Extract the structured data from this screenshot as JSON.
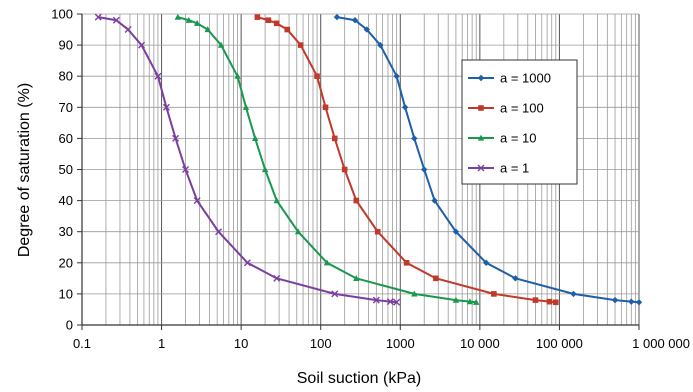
{
  "chart_data": {
    "type": "line",
    "title": "",
    "xlabel": "Soil suction (kPa)",
    "ylabel": "Degree of saturation (%)",
    "x_scale": "log",
    "xlim": [
      0.1,
      1000000
    ],
    "ylim": [
      0,
      100
    ],
    "grid": true,
    "legend_position": "right",
    "x_tick_labels": [
      "0.1",
      "1",
      "10",
      "100",
      "1000",
      "10 000",
      "100 000",
      "1 000 000"
    ],
    "y_tick_labels": [
      "0",
      "10",
      "20",
      "30",
      "40",
      "50",
      "60",
      "70",
      "80",
      "90",
      "100"
    ],
    "series": [
      {
        "name": "a = 1000",
        "color": "#1f5fa8",
        "marker": "diamond",
        "points": [
          [
            160,
            99
          ],
          [
            270,
            98
          ],
          [
            380,
            95
          ],
          [
            560,
            90
          ],
          [
            900,
            80
          ],
          [
            1150,
            70
          ],
          [
            1500,
            60
          ],
          [
            2000,
            50
          ],
          [
            2700,
            40
          ],
          [
            5000,
            30
          ],
          [
            12000,
            20
          ],
          [
            28000,
            15
          ],
          [
            150000,
            10
          ],
          [
            500000,
            8
          ],
          [
            800000,
            7.5
          ],
          [
            1000000,
            7.3
          ]
        ]
      },
      {
        "name": "a = 100",
        "color": "#c0392b",
        "marker": "square",
        "points": [
          [
            16,
            99
          ],
          [
            22,
            98
          ],
          [
            28,
            97
          ],
          [
            38,
            95
          ],
          [
            56,
            90
          ],
          [
            90,
            80
          ],
          [
            115,
            70
          ],
          [
            150,
            60
          ],
          [
            200,
            50
          ],
          [
            280,
            40
          ],
          [
            520,
            30
          ],
          [
            1200,
            20
          ],
          [
            2800,
            15
          ],
          [
            15000,
            10
          ],
          [
            50000,
            8
          ],
          [
            75000,
            7.5
          ],
          [
            90000,
            7.3
          ]
        ]
      },
      {
        "name": "a = 10",
        "color": "#1a9850",
        "marker": "triangle",
        "points": [
          [
            1.6,
            99
          ],
          [
            2.2,
            98
          ],
          [
            2.8,
            97
          ],
          [
            3.8,
            95
          ],
          [
            5.6,
            90
          ],
          [
            9,
            80
          ],
          [
            11.5,
            70
          ],
          [
            15,
            60
          ],
          [
            20,
            50
          ],
          [
            28,
            40
          ],
          [
            52,
            30
          ],
          [
            120,
            20
          ],
          [
            280,
            15
          ],
          [
            1500,
            10
          ],
          [
            5000,
            8
          ],
          [
            7500,
            7.5
          ],
          [
            9000,
            7.3
          ]
        ]
      },
      {
        "name": "a = 1",
        "color": "#7b3fa0",
        "marker": "x",
        "points": [
          [
            0.16,
            99
          ],
          [
            0.27,
            98
          ],
          [
            0.38,
            95
          ],
          [
            0.56,
            90
          ],
          [
            0.9,
            80
          ],
          [
            1.15,
            70
          ],
          [
            1.5,
            60
          ],
          [
            2,
            50
          ],
          [
            2.8,
            40
          ],
          [
            5.2,
            30
          ],
          [
            12,
            20
          ],
          [
            28,
            15
          ],
          [
            150,
            10
          ],
          [
            500,
            8
          ],
          [
            750,
            7.5
          ],
          [
            900,
            7.3
          ]
        ]
      }
    ]
  }
}
